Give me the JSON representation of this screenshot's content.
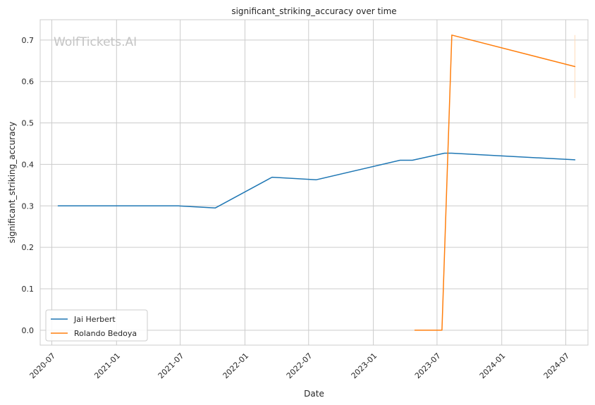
{
  "chart_data": {
    "type": "line",
    "title": "significant_striking_accuracy over time",
    "xlabel": "Date",
    "ylabel": "significant_striking_accuracy",
    "watermark": "WolfTickets.AI",
    "xlim": [
      "2020-05-29",
      "2024-09-02"
    ],
    "ylim": [
      -0.036,
      0.749
    ],
    "grid": true,
    "legend_position": "lower-left",
    "x_ticks": [
      "2020-07",
      "2021-01",
      "2021-07",
      "2022-01",
      "2022-07",
      "2023-01",
      "2023-07",
      "2024-01",
      "2024-07"
    ],
    "y_ticks": [
      "0.0",
      "0.1",
      "0.2",
      "0.3",
      "0.4",
      "0.5",
      "0.6",
      "0.7"
    ],
    "series": [
      {
        "name": "Jai Herbert",
        "color": "#1f77b4",
        "x": [
          "2020-07-19",
          "2021-06-26",
          "2021-10-09",
          "2022-03-19",
          "2022-07-23",
          "2023-03-18",
          "2023-04-22",
          "2023-07-22",
          "2023-08-12",
          "2024-07-27"
        ],
        "y": [
          0.3,
          0.3,
          0.295,
          0.369,
          0.363,
          0.41,
          0.41,
          0.427,
          0.427,
          0.411
        ]
      },
      {
        "name": "Rolando Bedoya",
        "color": "#ff7f0e",
        "x": [
          "2023-04-29",
          "2023-07-15",
          "2023-08-12",
          "2024-07-27"
        ],
        "y": [
          0.0,
          0.0,
          0.712,
          0.636
        ]
      }
    ],
    "annotation_band": {
      "x": "2024-07-27",
      "y_range": [
        0.56,
        0.712
      ],
      "color": "#ffdcbc"
    }
  }
}
